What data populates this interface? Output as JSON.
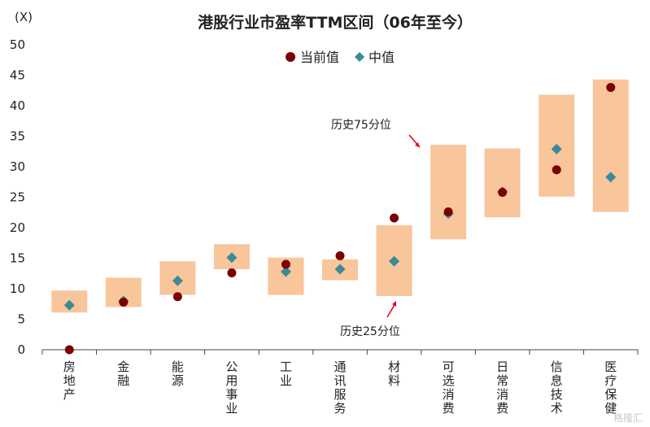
{
  "chart_data": {
    "type": "range-box",
    "title": "港股行业市盈率TTM区间（06年至今）",
    "y_unit_label": "(X)",
    "ylim": [
      0,
      50
    ],
    "y_ticks": [
      0,
      5,
      10,
      15,
      20,
      25,
      30,
      35,
      40,
      45,
      50
    ],
    "legend_position": "top-center",
    "legend": [
      {
        "name": "当前值",
        "color": "#7b0000",
        "marker": "circle"
      },
      {
        "name": "中值",
        "color": "#3a8a9a",
        "marker": "diamond"
      }
    ],
    "box_color": "#f9c59a",
    "categories": [
      "房地产",
      "金融",
      "能源",
      "公用事业",
      "工业",
      "通讯服务",
      "材料",
      "可选消费",
      "日常消费",
      "信息技术",
      "医疗保健"
    ],
    "p25": [
      6.1,
      7.0,
      9.0,
      13.2,
      9.0,
      11.4,
      8.8,
      18.1,
      21.7,
      25.1,
      22.6
    ],
    "p75": [
      9.7,
      11.8,
      14.5,
      17.3,
      15.1,
      14.8,
      20.4,
      33.6,
      33.0,
      41.8,
      44.3
    ],
    "current": [
      0.0,
      7.8,
      8.7,
      12.6,
      14.0,
      15.4,
      21.6,
      22.6,
      25.8,
      29.5,
      43.0
    ],
    "median": [
      7.3,
      8.0,
      11.3,
      15.1,
      12.8,
      13.2,
      14.5,
      22.3,
      25.9,
      32.9,
      28.3
    ],
    "annotations": [
      {
        "text": "历史75分位"
      },
      {
        "text": "历史25分位"
      }
    ]
  },
  "watermark": "格隆汇"
}
